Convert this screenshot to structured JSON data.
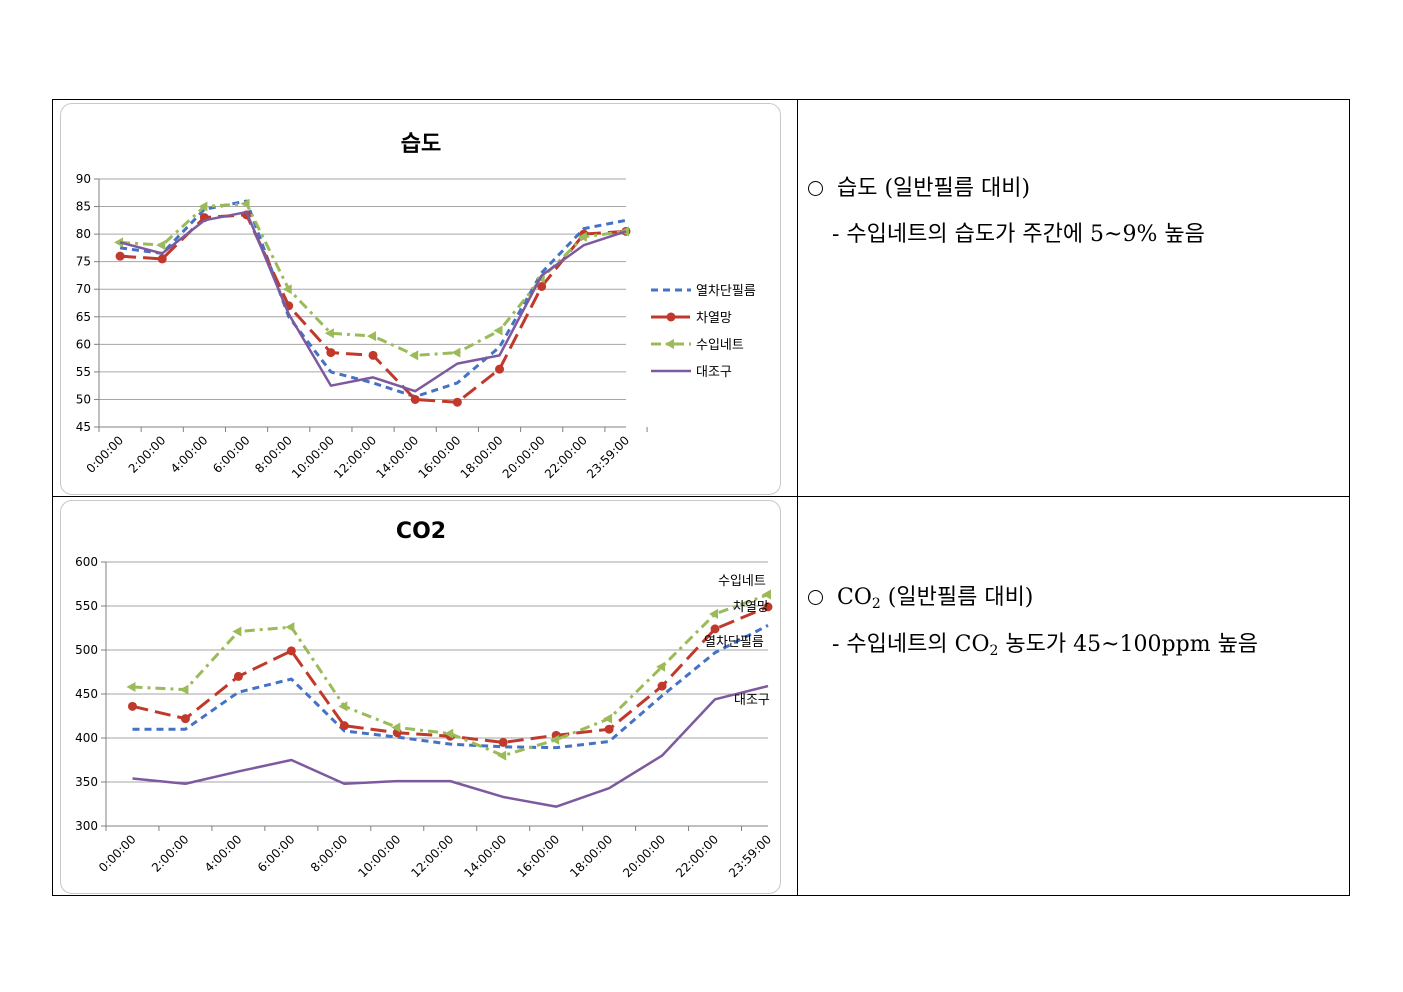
{
  "colors": {
    "열차단필름": "#4472c4",
    "차열망": "#c0392b",
    "수입네트": "#9bbb59",
    "대조구": "#7d5aa0",
    "grid": "#a6a6a6"
  },
  "notes": {
    "humidity": {
      "marker": "O",
      "line1": "습도 (일반필름 대비)",
      "line2": "- 수입네트의 습도가 주간에 5~9% 높음"
    },
    "co2": {
      "marker": "O",
      "line1_a": "CO",
      "line1_sub": "2",
      "line1_b": " (일반필름 대비)",
      "line2_a": "- 수입네트의 CO",
      "line2_sub": "2",
      "line2_b": " 농도가 45~100ppm 높음"
    }
  },
  "chart_data": [
    {
      "type": "line",
      "title": "습도",
      "x": [
        "0:00:00",
        "2:00:00",
        "4:00:00",
        "6:00:00",
        "8:00:00",
        "10:00:00",
        "12:00:00",
        "14:00:00",
        "16:00:00",
        "18:00:00",
        "20:00:00",
        "22:00:00",
        "23:59:00"
      ],
      "ylim": [
        45,
        90
      ],
      "yticks": [
        45,
        50,
        55,
        60,
        65,
        70,
        75,
        80,
        85,
        90
      ],
      "grid": true,
      "legend": "right",
      "series": [
        {
          "name": "열차단필름",
          "values": [
            77.5,
            76.5,
            84.5,
            86,
            65,
            55,
            53,
            50.5,
            53,
            59.5,
            73,
            81,
            82.5
          ]
        },
        {
          "name": "차열망",
          "values": [
            76,
            75.5,
            83,
            83.5,
            67,
            58.5,
            58,
            50,
            49.5,
            55.5,
            70.5,
            80,
            80.5
          ]
        },
        {
          "name": "수입네트",
          "values": [
            78.5,
            78,
            85,
            85.5,
            70,
            62,
            61.5,
            58,
            58.5,
            62.5,
            72,
            79.5,
            80.5
          ]
        },
        {
          "name": "대조구",
          "values": [
            78.5,
            76.5,
            82.5,
            84,
            65.5,
            52.5,
            54,
            51.5,
            56.5,
            58,
            72.5,
            78,
            80.5
          ]
        }
      ]
    },
    {
      "type": "line",
      "title": "CO2",
      "x": [
        "0:00:00",
        "2:00:00",
        "4:00:00",
        "6:00:00",
        "8:00:00",
        "10:00:00",
        "12:00:00",
        "14:00:00",
        "16:00:00",
        "18:00:00",
        "20:00:00",
        "22:00:00",
        "23:59:00"
      ],
      "ylim": [
        300,
        600
      ],
      "yticks": [
        300,
        350,
        400,
        450,
        500,
        550,
        600
      ],
      "grid": true,
      "legend": "series-end-labels",
      "series": [
        {
          "name": "열차단필름",
          "values": [
            410,
            410,
            452,
            467,
            408,
            401,
            393,
            390,
            389,
            396,
            448,
            497,
            528
          ]
        },
        {
          "name": "차열망",
          "values": [
            436,
            422,
            470,
            499,
            414,
            406,
            402,
            395,
            403,
            410,
            459,
            524,
            549
          ]
        },
        {
          "name": "수입네트",
          "values": [
            458,
            455,
            521,
            526,
            436,
            412,
            405,
            380,
            398,
            422,
            481,
            541,
            563
          ]
        },
        {
          "name": "대조구",
          "values": [
            354,
            348,
            362,
            375,
            348,
            351,
            351,
            333,
            322,
            343,
            380,
            444,
            459
          ]
        }
      ]
    }
  ]
}
